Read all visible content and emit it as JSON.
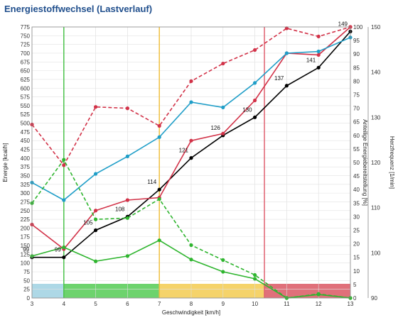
{
  "header": {
    "title": "Energiestoffwechsel (Lastverlauf)"
  },
  "chart_data": {
    "type": "line",
    "title": "Energiestoffwechsel (Lastverlauf)",
    "xlabel": "Geschwindigkeit [km/h]",
    "ylabel_left": "Energie [kcal/h]",
    "ylabel_right1": "Anteilige Energiebereitstellung [%]",
    "ylabel_right2": "Herzfrequenz [1/min]",
    "xlim": [
      3,
      13
    ],
    "ylim_left": [
      0,
      775
    ],
    "ylim_right1": [
      0,
      100
    ],
    "ylim_right2": [
      90,
      150
    ],
    "x_ticks": [
      3,
      4,
      5,
      6,
      7,
      8,
      9,
      10,
      11,
      12,
      13
    ],
    "y_left_ticks": [
      0,
      25,
      50,
      75,
      100,
      125,
      150,
      175,
      200,
      225,
      250,
      275,
      300,
      325,
      350,
      375,
      400,
      425,
      450,
      475,
      500,
      525,
      550,
      575,
      600,
      625,
      650,
      675,
      700,
      725,
      750,
      775
    ],
    "y_right1_ticks": [
      0,
      5,
      10,
      15,
      20,
      25,
      30,
      35,
      40,
      45,
      50,
      55,
      60,
      65,
      70,
      75,
      80,
      85,
      90,
      95,
      100
    ],
    "y_right2_ticks": [
      90,
      100,
      110,
      120,
      130,
      140,
      150
    ],
    "grid": true,
    "zones": [
      {
        "from": 3,
        "to": 4,
        "color": "#add8e6"
      },
      {
        "from": 4,
        "to": 7,
        "color": "#6dd36d"
      },
      {
        "from": 7,
        "to": 10.3,
        "color": "#f5d36a"
      },
      {
        "from": 10.3,
        "to": 13,
        "color": "#e0707a"
      }
    ],
    "thresholds": [
      {
        "x": 4,
        "color": "#4cc44c"
      },
      {
        "x": 7,
        "color": "#f0c040"
      },
      {
        "x": 10.3,
        "color": "#e06070"
      }
    ],
    "series": [
      {
        "axis": "right2",
        "color": "#000000",
        "style": "solid",
        "x": [
          3,
          4,
          5,
          6,
          7,
          8,
          9,
          10,
          11,
          12,
          13
        ],
        "values": [
          99,
          99,
          105,
          108,
          114,
          121,
          126,
          130,
          137,
          141,
          149
        ],
        "labels": [
          "99",
          "99",
          "105",
          "108",
          "114",
          "121",
          "126",
          "130",
          "137",
          "141",
          "149"
        ]
      },
      {
        "axis": "left",
        "color": "#d23248",
        "style": "solid",
        "x": [
          3,
          4,
          5,
          6,
          7,
          8,
          9,
          10,
          11,
          12,
          13
        ],
        "values": [
          210,
          140,
          250,
          280,
          287,
          450,
          470,
          565,
          700,
          695,
          775
        ]
      },
      {
        "axis": "left",
        "color": "#1f9ec8",
        "style": "solid",
        "x": [
          3,
          4,
          5,
          6,
          7,
          8,
          9,
          10,
          11,
          12,
          13
        ],
        "values": [
          330,
          280,
          355,
          405,
          460,
          560,
          545,
          615,
          700,
          705,
          745
        ]
      },
      {
        "axis": "left",
        "color": "#2fb52f",
        "style": "solid",
        "x": [
          3,
          4,
          5,
          6,
          7,
          8,
          9,
          10,
          11,
          12,
          13
        ],
        "values": [
          120,
          145,
          105,
          120,
          165,
          110,
          75,
          55,
          0,
          10,
          0
        ]
      },
      {
        "axis": "right1",
        "color": "#d23248",
        "style": "dashed",
        "x": [
          3,
          4,
          5,
          6,
          7,
          8,
          9,
          10,
          11,
          12,
          13
        ],
        "values": [
          64,
          49,
          70.5,
          70,
          63.5,
          80,
          86.5,
          91.5,
          99.5,
          96.5,
          100
        ]
      },
      {
        "axis": "right1",
        "color": "#2fb52f",
        "style": "dashed",
        "x": [
          3,
          4,
          5,
          6,
          7,
          8,
          9,
          10,
          11,
          12,
          13
        ],
        "values": [
          35,
          51,
          29,
          29.5,
          36.5,
          19.5,
          14,
          8.5,
          0,
          1.5,
          0
        ]
      }
    ]
  }
}
